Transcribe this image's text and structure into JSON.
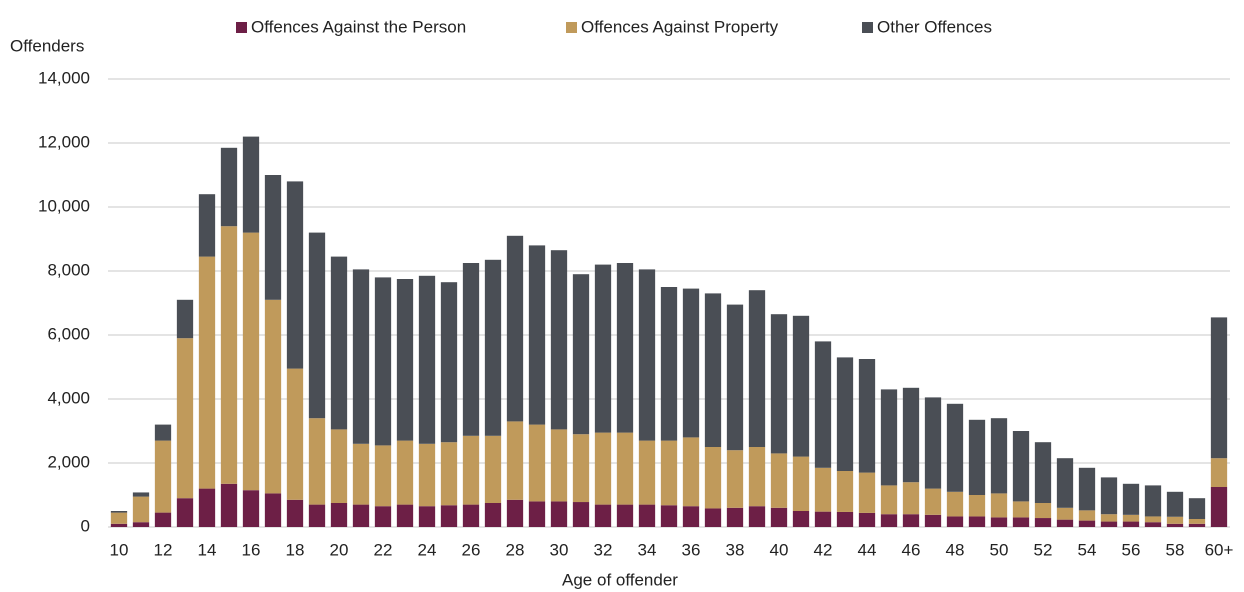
{
  "chart_data": {
    "type": "stacked-bar",
    "y_axis_label": "Offenders",
    "x_axis_label": "Age of offender",
    "categories": [
      "10",
      null,
      "12",
      null,
      "14",
      null,
      "16",
      null,
      "18",
      null,
      "20",
      null,
      "22",
      null,
      "24",
      null,
      "26",
      null,
      "28",
      null,
      "30",
      null,
      "32",
      null,
      "34",
      null,
      "36",
      null,
      "38",
      null,
      "40",
      null,
      "42",
      null,
      "44",
      null,
      "46",
      null,
      "48",
      null,
      "50",
      null,
      "52",
      null,
      "54",
      null,
      "56",
      null,
      "58",
      null,
      "60+"
    ],
    "series": [
      {
        "name": "Offences Against the Person",
        "color": "#6d1f46",
        "values": [
          100,
          150,
          450,
          900,
          1200,
          1350,
          1150,
          1050,
          850,
          700,
          750,
          700,
          650,
          700,
          650,
          680,
          700,
          750,
          850,
          800,
          800,
          780,
          700,
          700,
          700,
          680,
          650,
          580,
          600,
          650,
          600,
          500,
          480,
          470,
          440,
          400,
          400,
          380,
          330,
          330,
          300,
          300,
          280,
          230,
          200,
          170,
          170,
          150,
          100,
          100,
          1250
        ]
      },
      {
        "name": "Offences Against Property",
        "color": "#c09a5b",
        "values": [
          350,
          800,
          2250,
          5000,
          7250,
          8050,
          8050,
          6050,
          4100,
          2700,
          2300,
          1900,
          1900,
          2000,
          1950,
          1970,
          2150,
          2100,
          2450,
          2400,
          2250,
          2120,
          2250,
          2250,
          2000,
          2020,
          2150,
          1920,
          1800,
          1850,
          1700,
          1700,
          1370,
          1280,
          1260,
          900,
          1000,
          820,
          770,
          670,
          750,
          500,
          470,
          370,
          320,
          230,
          210,
          180,
          220,
          150,
          900
        ]
      },
      {
        "name": "Other Offences",
        "color": "#4a4e55",
        "values": [
          50,
          130,
          500,
          1200,
          1950,
          2450,
          3000,
          3900,
          5850,
          5800,
          5400,
          5450,
          5250,
          5050,
          5250,
          5000,
          5400,
          5500,
          5800,
          5600,
          5600,
          5000,
          5250,
          5300,
          5350,
          4800,
          4650,
          4800,
          4550,
          4900,
          4350,
          4400,
          3950,
          3550,
          3550,
          3000,
          2950,
          2850,
          2750,
          2350,
          2350,
          2200,
          1900,
          1550,
          1330,
          1150,
          970,
          970,
          780,
          650,
          4400
        ]
      }
    ],
    "ylim": [
      0,
      14000
    ],
    "yticks": [
      0,
      {
        "value": 2000,
        "label": "2,000"
      },
      {
        "value": 4000,
        "label": "4,000"
      },
      {
        "value": 6000,
        "label": "6,000"
      },
      {
        "value": 8000,
        "label": "8,000"
      },
      {
        "value": 10000,
        "label": "10,000"
      },
      {
        "value": 12000,
        "label": "12,000"
      },
      {
        "value": 14000,
        "label": "14,000"
      }
    ],
    "grid": true,
    "legend": "top"
  }
}
